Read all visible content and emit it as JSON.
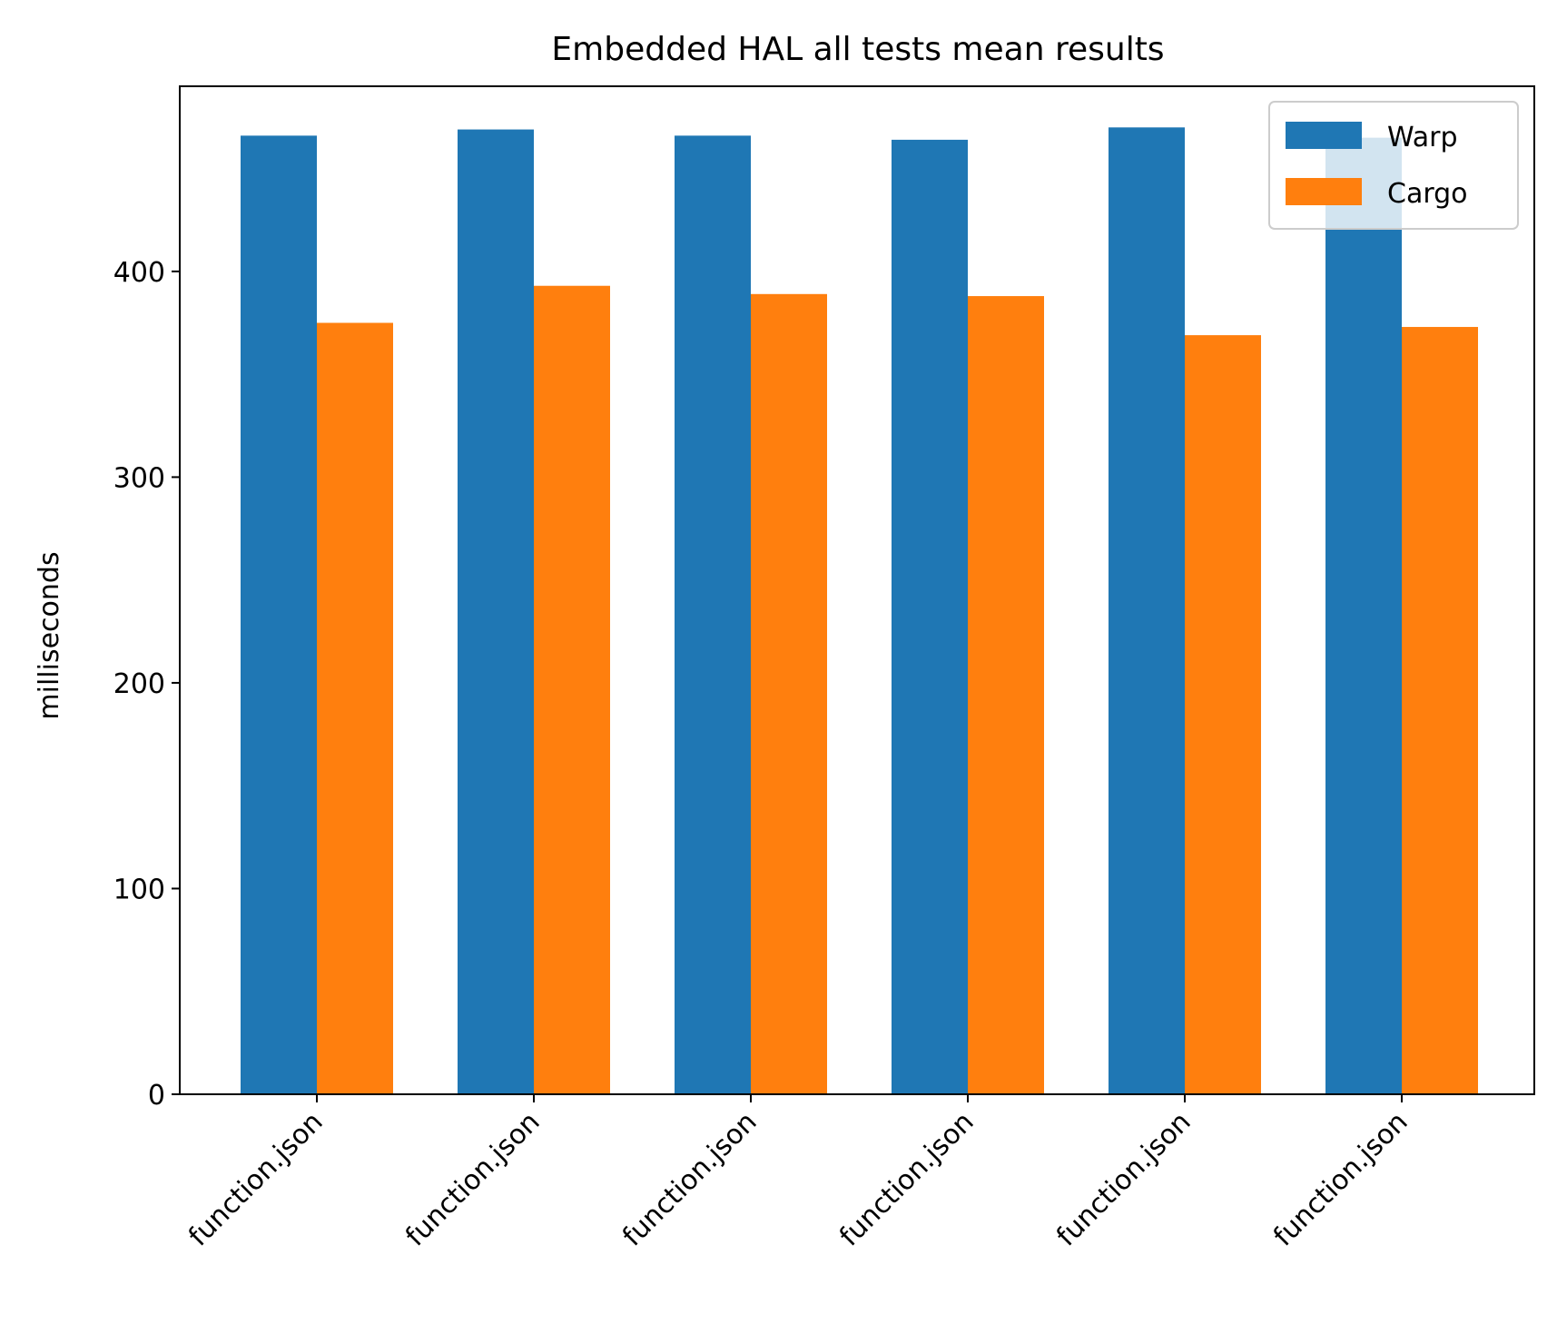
{
  "chart_data": {
    "type": "bar",
    "title": "Embedded HAL all tests mean results",
    "xlabel": "",
    "ylabel": "milliseconds",
    "categories": [
      "function.json",
      "function.json",
      "function.json",
      "function.json",
      "function.json",
      "function.json"
    ],
    "series": [
      {
        "name": "Warp",
        "color": "#1f77b4",
        "values": [
          466,
          469,
          466,
          464,
          470,
          465
        ]
      },
      {
        "name": "Cargo",
        "color": "#ff7f0e",
        "values": [
          375,
          393,
          389,
          388,
          369,
          373
        ]
      }
    ],
    "ylim": [
      0,
      490
    ],
    "yticks": [
      0,
      100,
      200,
      300,
      400
    ],
    "legend": "top-right",
    "grid": false
  }
}
